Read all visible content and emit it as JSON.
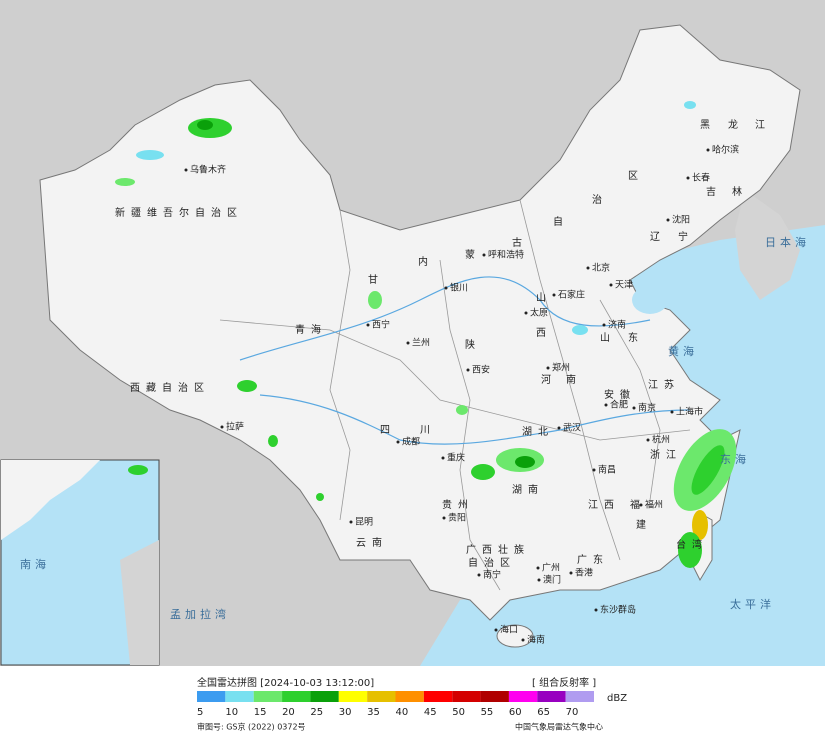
{
  "header": {
    "title": "全国雷达拼图 [2024-10-03 13:12:00]",
    "product": "[ 组合反射率 ]"
  },
  "legend": {
    "unit": "dBZ",
    "levels": [
      {
        "value": 5,
        "color": "#3c9cf0"
      },
      {
        "value": 10,
        "color": "#78e0f0"
      },
      {
        "value": 15,
        "color": "#6ce86c"
      },
      {
        "value": 20,
        "color": "#2ed02e"
      },
      {
        "value": 25,
        "color": "#0aa00a"
      },
      {
        "value": 30,
        "color": "#ffff00"
      },
      {
        "value": 35,
        "color": "#e6c000"
      },
      {
        "value": 40,
        "color": "#ff9000"
      },
      {
        "value": 45,
        "color": "#ff0000"
      },
      {
        "value": 50,
        "color": "#d40000"
      },
      {
        "value": 55,
        "color": "#b00000"
      },
      {
        "value": 60,
        "color": "#ff00f0"
      },
      {
        "value": 65,
        "color": "#9800c0"
      },
      {
        "value": 70,
        "color": "#b09cf0"
      }
    ]
  },
  "map": {
    "labels": [
      "乌鲁木齐",
      "新疆维吾尔自治区",
      "西藏自治区",
      "拉萨",
      "青海",
      "西宁",
      "甘",
      "银川",
      "内",
      "蒙",
      "古",
      "自",
      "治",
      "区",
      "呼和浩特",
      "黑",
      "龙",
      "江",
      "哈尔滨",
      "长春",
      "吉",
      "林",
      "沈阳",
      "辽",
      "宁",
      "北京",
      "天津",
      "石家庄",
      "太原",
      "山",
      "西",
      "济南",
      "山",
      "东",
      "郑州",
      "河",
      "南",
      "西安",
      "陕",
      "兰州",
      "四",
      "川",
      "成都",
      "重庆",
      "贵州",
      "贵阳",
      "云南",
      "昆明",
      "广西壮族",
      "自治区",
      "南宁",
      "广东",
      "广州",
      "湖北",
      "武汉",
      "湖南",
      "江西",
      "南昌",
      "安徽",
      "合肥",
      "江苏",
      "南京",
      "上海市",
      "浙江",
      "杭州",
      "福",
      "建",
      "福州",
      "台湾",
      "海口",
      "海南",
      "香港",
      "澳门",
      "黄海",
      "东海",
      "日本海",
      "太平洋",
      "孟加拉湾",
      "南海",
      "东沙群岛"
    ]
  },
  "footer": {
    "approval": "审图号: GS京 (2022) 0372号",
    "agency": "中国气象局雷达气象中心"
  }
}
